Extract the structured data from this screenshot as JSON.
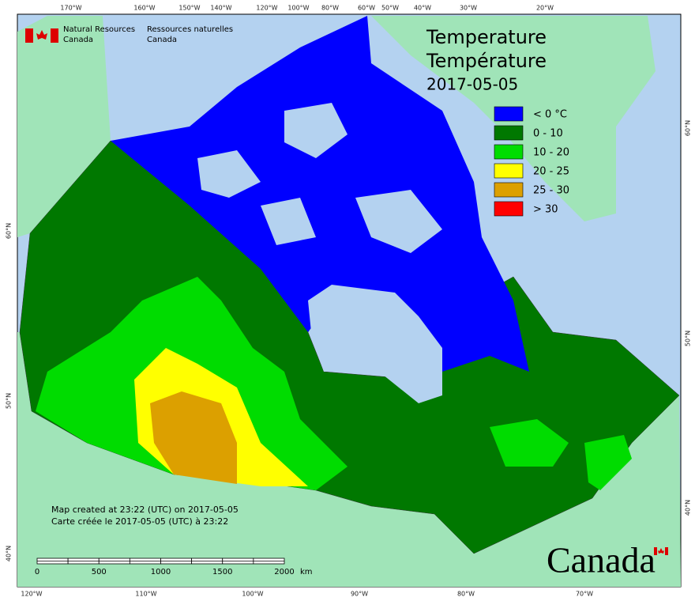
{
  "header": {
    "org_en": "Natural Resources",
    "org_en2": "Canada",
    "org_fr": "Ressources naturelles",
    "org_fr2": "Canada"
  },
  "title": {
    "en": "Temperature",
    "fr": "Température",
    "date": "2017-05-05"
  },
  "legend": [
    {
      "label": "< 0 °C",
      "color": "#0000ff"
    },
    {
      "label": "0 - 10",
      "color": "#007800"
    },
    {
      "label": "10 - 20",
      "color": "#00dc00"
    },
    {
      "label": "20 - 25",
      "color": "#ffff00"
    },
    {
      "label": "25 - 30",
      "color": "#dca000"
    },
    {
      "label": "> 30",
      "color": "#ff0000"
    }
  ],
  "top_axis": [
    "170°W",
    "160°W",
    "150°W",
    "140°W",
    "120°W",
    "100°W",
    "80°W",
    "60°W",
    "50°W",
    "40°W",
    "30°W",
    "20°W"
  ],
  "bottom_axis": [
    "120°W",
    "110°W",
    "100°W",
    "90°W",
    "80°W",
    "70°W"
  ],
  "left_axis": [
    "60°N",
    "50°N",
    "40°N"
  ],
  "right_axis": [
    "60°N",
    "50°N",
    "40°N"
  ],
  "credits": [
    "Map created at 23:22 (UTC) on 2017-05-05",
    "Carte créée le 2017-05-05 (UTC) à 23:22"
  ],
  "scale_bar": {
    "labels": [
      "0",
      "500",
      "1000",
      "1500",
      "2000"
    ],
    "unit": "km"
  },
  "wordmark": "Canada"
}
